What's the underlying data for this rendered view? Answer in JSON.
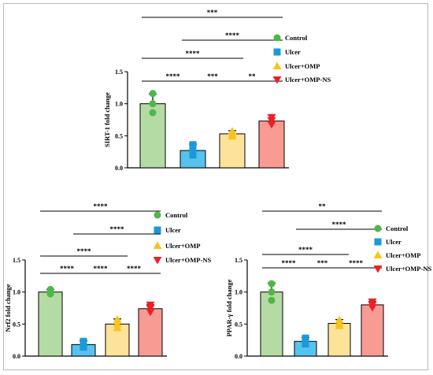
{
  "colors": {
    "control": "#b5dba4",
    "ulcer": "#57c2ee",
    "omp": "#fde29a",
    "ompns": "#f79b93",
    "control_marker": "#4db848",
    "ulcer_marker": "#1a9ad8",
    "omp_marker": "#f8c319",
    "ompns_marker": "#ec2027"
  },
  "chart_data": [
    {
      "type": "bar",
      "ylabel": "SIRT-1 fold change",
      "ylim": [
        0,
        1.5
      ],
      "yticks": [
        "0.0",
        "0.5",
        "1.0",
        "1.5"
      ],
      "categories": [
        "Control",
        "Ulcer",
        "Ulcer+OMP",
        "Ulcer+OMP-NS"
      ],
      "values": [
        1.0,
        0.27,
        0.53,
        0.73
      ],
      "errors": [
        0.15,
        0.1,
        0.05,
        0.05
      ],
      "points": [
        [
          1.16,
          1.0,
          0.86
        ],
        [
          0.36,
          0.28,
          0.2
        ],
        [
          0.57,
          0.53,
          0.49
        ],
        [
          0.79,
          0.74,
          0.68
        ]
      ],
      "legend": [
        "Control",
        "Ulcer",
        "Ulcer+OMP",
        "Ulcer+OMP-NS"
      ],
      "significance": [
        {
          "from": 0,
          "to": 1,
          "label": "****"
        },
        {
          "from": 1,
          "to": 2,
          "label": "***"
        },
        {
          "from": 2,
          "to": 3,
          "label": "**"
        },
        {
          "from": 0,
          "to": 2,
          "label": "****"
        },
        {
          "from": 1,
          "to": 3,
          "label": "****"
        },
        {
          "from": 0,
          "to": 3,
          "label": "***"
        }
      ]
    },
    {
      "type": "bar",
      "ylabel": "Nrf2 fold change",
      "ylim": [
        0,
        1.5
      ],
      "yticks": [
        "0.0",
        "0.5",
        "1.0",
        "1.5"
      ],
      "categories": [
        "Control",
        "Ulcer",
        "Ulcer+OMP",
        "Ulcer+OMP-NS"
      ],
      "values": [
        1.0,
        0.18,
        0.5,
        0.74
      ],
      "errors": [
        0.04,
        0.06,
        0.08,
        0.06
      ],
      "points": [
        [
          1.04,
          1.0,
          0.97
        ],
        [
          0.23,
          0.18,
          0.14
        ],
        [
          0.57,
          0.5,
          0.44
        ],
        [
          0.8,
          0.75,
          0.69
        ]
      ],
      "legend": [
        "Control",
        "Ulcer",
        "Ulcer+OMP",
        "Ulcer+OMP-NS"
      ],
      "significance": [
        {
          "from": 0,
          "to": 1,
          "label": "****"
        },
        {
          "from": 1,
          "to": 2,
          "label": "****"
        },
        {
          "from": 2,
          "to": 3,
          "label": "****"
        },
        {
          "from": 0,
          "to": 2,
          "label": "****"
        },
        {
          "from": 1,
          "to": 3,
          "label": "****"
        },
        {
          "from": 0,
          "to": 3,
          "label": "****"
        }
      ]
    },
    {
      "type": "bar",
      "ylabel": "PPAR-γ fold change",
      "ylim": [
        0,
        1.5
      ],
      "yticks": [
        "0.0",
        "0.5",
        "1.0",
        "1.5"
      ],
      "categories": [
        "Control",
        "Ulcer",
        "Ulcer+OMP",
        "Ulcer+OMP-NS"
      ],
      "values": [
        1.0,
        0.23,
        0.51,
        0.8
      ],
      "errors": [
        0.14,
        0.06,
        0.06,
        0.05
      ],
      "points": [
        [
          1.13,
          1.0,
          0.87
        ],
        [
          0.28,
          0.23,
          0.19
        ],
        [
          0.56,
          0.51,
          0.47
        ],
        [
          0.85,
          0.8,
          0.76
        ]
      ],
      "legend": [
        "Control",
        "Ulcer",
        "Ulcer+OMP",
        "Ulcer+OMP-NS"
      ],
      "significance": [
        {
          "from": 0,
          "to": 1,
          "label": "****"
        },
        {
          "from": 1,
          "to": 2,
          "label": "***"
        },
        {
          "from": 2,
          "to": 3,
          "label": "****"
        },
        {
          "from": 0,
          "to": 2,
          "label": "****"
        },
        {
          "from": 1,
          "to": 3,
          "label": "****"
        },
        {
          "from": 0,
          "to": 3,
          "label": "**"
        }
      ]
    }
  ]
}
